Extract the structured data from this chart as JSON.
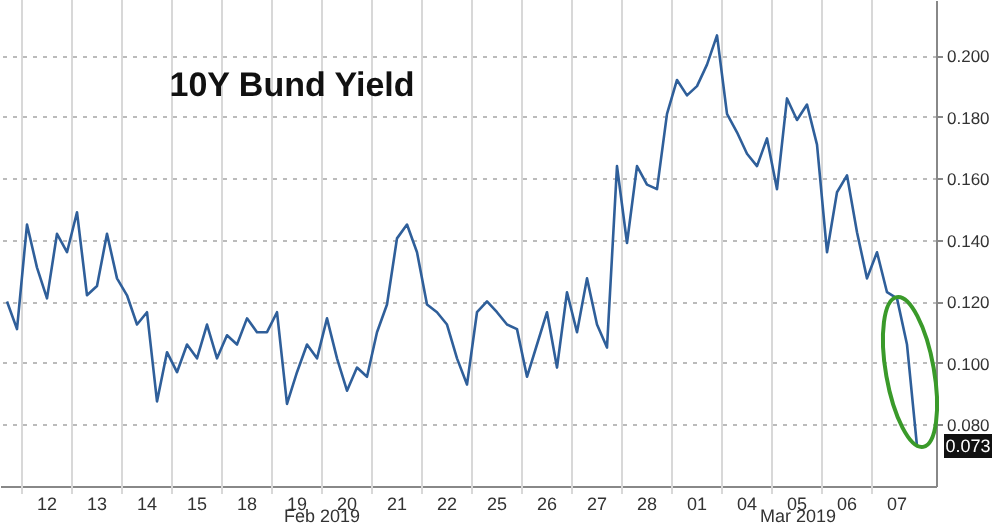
{
  "chart_data": {
    "type": "line",
    "title": "10Y Bund Yield",
    "categories": [
      null,
      null,
      null,
      null,
      "12",
      null,
      null,
      null,
      null,
      "13",
      null,
      null,
      null,
      null,
      "14",
      null,
      null,
      null,
      null,
      "15",
      null,
      null,
      null,
      null,
      "18",
      null,
      null,
      null,
      null,
      "19",
      null,
      null,
      null,
      null,
      "20",
      null,
      null,
      null,
      null,
      "21",
      null,
      null,
      null,
      null,
      "22",
      null,
      null,
      null,
      null,
      "25",
      null,
      null,
      null,
      null,
      "26",
      null,
      null,
      null,
      null,
      "27",
      null,
      null,
      null,
      null,
      "28",
      null,
      null,
      null,
      null,
      "01",
      null,
      null,
      null,
      null,
      "04",
      null,
      null,
      null,
      null,
      "05",
      null,
      null,
      null,
      null,
      "06",
      null,
      null,
      null,
      null,
      "07",
      null,
      null
    ],
    "series": [
      {
        "color": "#2f5f9a",
        "values": [
          0.12,
          0.111,
          0.145,
          0.131,
          0.121,
          0.142,
          0.136,
          0.149,
          0.122,
          0.125,
          0.142,
          0.1275,
          0.122,
          0.1125,
          0.1165,
          0.0875,
          0.1035,
          0.097,
          0.106,
          0.1015,
          0.1125,
          0.1015,
          0.109,
          0.106,
          0.1145,
          0.11,
          0.11,
          0.1165,
          0.0867,
          0.097,
          0.106,
          0.1015,
          0.1145,
          0.1015,
          0.091,
          0.0985,
          0.0955,
          0.11,
          0.119,
          0.1405,
          0.145,
          0.136,
          0.119,
          0.1165,
          0.1125,
          0.1015,
          0.093,
          0.1165,
          0.12,
          0.1165,
          0.1125,
          0.111,
          0.0955,
          0.106,
          0.1165,
          0.0985,
          0.123,
          0.11,
          0.1275,
          0.1125,
          0.105,
          0.164,
          0.139,
          0.164,
          0.158,
          0.1565,
          0.181,
          0.192,
          0.187,
          0.19,
          0.197,
          0.2065,
          0.181,
          0.175,
          0.168,
          0.164,
          0.173,
          0.1565,
          0.186,
          0.179,
          0.184,
          0.171,
          0.136,
          0.1555,
          0.161,
          0.1425,
          0.1275,
          0.136,
          0.123,
          0.121,
          0.106,
          0.073
        ],
        "value_labels": [
          null,
          null,
          null,
          null,
          null,
          null,
          null,
          null,
          null,
          null,
          null,
          null,
          null,
          null,
          null,
          null,
          null,
          null,
          null,
          null,
          null,
          null,
          null,
          null,
          null,
          null,
          null,
          null,
          null,
          null,
          null,
          null,
          null,
          null,
          null,
          null,
          null,
          null,
          null,
          null,
          null,
          null,
          null,
          null,
          null,
          null,
          null,
          null,
          null,
          null,
          null,
          null,
          null,
          null,
          null,
          null,
          null,
          null,
          null,
          null,
          null,
          null,
          null,
          null,
          null,
          null,
          null,
          null,
          null,
          null,
          null,
          null,
          null,
          null,
          null,
          null,
          null,
          null,
          null,
          null,
          null,
          null,
          null,
          null,
          null,
          null,
          null,
          null,
          null,
          null,
          null,
          "0.073"
        ]
      }
    ],
    "ylim": [
      0.06,
      0.218
    ],
    "yticks": [
      {
        "value": 0.08,
        "label": "0.080"
      },
      {
        "value": 0.1,
        "label": "0.100"
      },
      {
        "value": 0.12,
        "label": "0.120"
      },
      {
        "value": 0.14,
        "label": "0.140"
      },
      {
        "value": 0.16,
        "label": "0.160"
      },
      {
        "value": 0.18,
        "label": "0.180"
      },
      {
        "value": 0.2,
        "label": "0.200"
      }
    ],
    "grid": true,
    "annotations": [
      "Feb 2019",
      "Mar 2019"
    ]
  }
}
